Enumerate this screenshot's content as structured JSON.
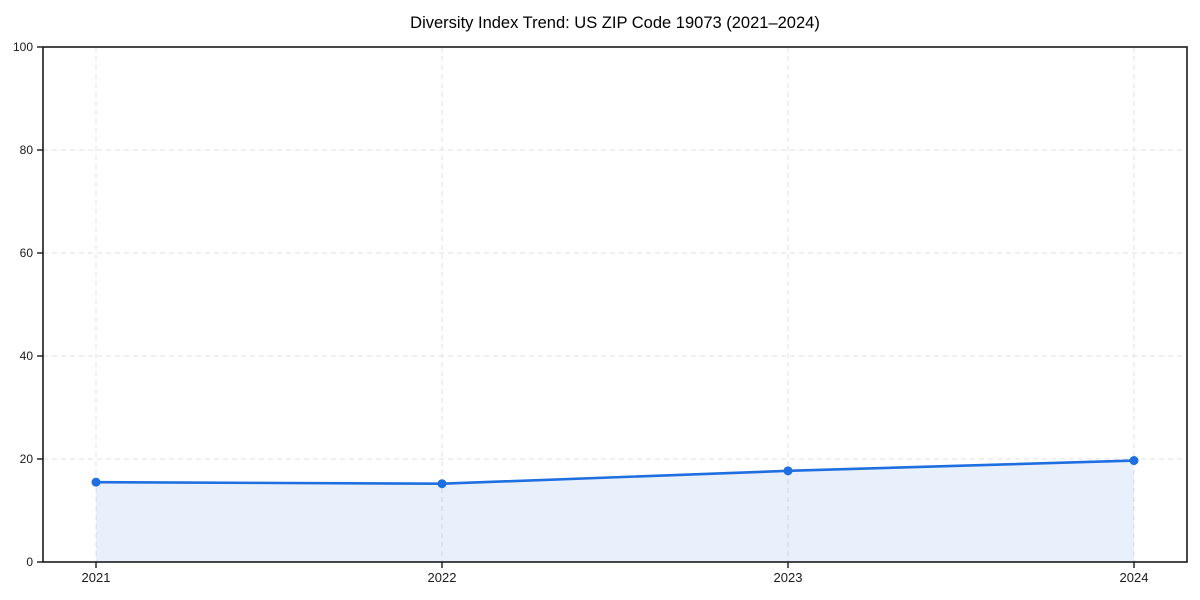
{
  "chart_data": {
    "type": "line",
    "title": "Diversity Index Trend: US ZIP Code 19073 (2021–2024)",
    "x": [
      2021,
      2022,
      2023,
      2024
    ],
    "xtick_labels": [
      "2021",
      "2022",
      "2023",
      "2024"
    ],
    "series": [
      {
        "name": "Diversity Index",
        "values": [
          15.5,
          15.2,
          17.7,
          19.7
        ]
      }
    ],
    "xlabel": "",
    "ylabel": "",
    "ylim": [
      0,
      100
    ],
    "yticks": [
      0,
      20,
      40,
      60,
      80,
      100
    ],
    "ytick_labels": [
      "0",
      "20",
      "40",
      "60",
      "80",
      "100"
    ],
    "grid": true,
    "grid_style": "dashed",
    "legend_position": "none",
    "area_fill": true,
    "marker": "circle",
    "colors": {
      "line": "#1f6fe0",
      "marker": "#1f6fe0",
      "area": "rgba(31,111,224,0.10)",
      "grid": "#e2e2e2",
      "spine": "#1a1a1a",
      "tick": "#1a1a1a",
      "title": "#000000",
      "background": "#ffffff"
    }
  }
}
